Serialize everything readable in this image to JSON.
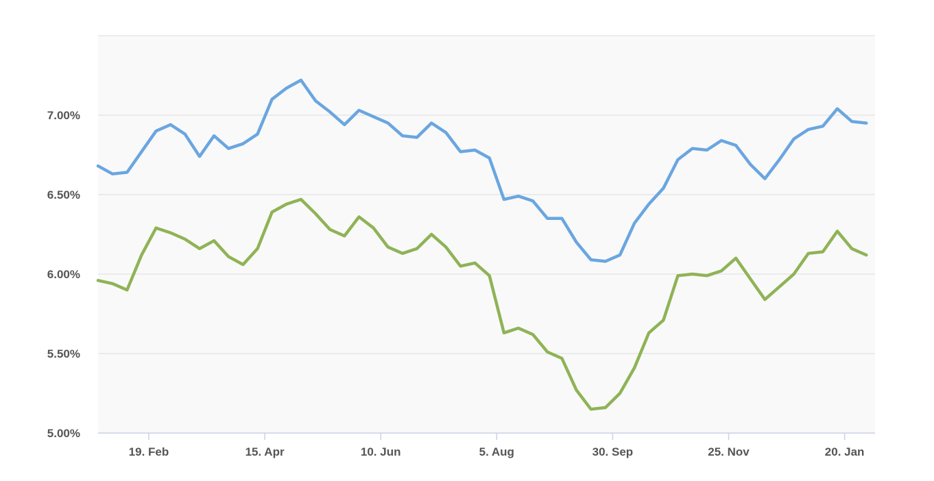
{
  "chart_data": {
    "type": "line",
    "title": "",
    "xlabel": "",
    "ylabel": "",
    "ylim": [
      5.0,
      7.5
    ],
    "y_ticks": [
      5.0,
      5.5,
      6.0,
      6.5,
      7.0,
      7.5
    ],
    "y_tick_labels": [
      "5.00%",
      "5.50%",
      "6.00%",
      "6.50%",
      "7.00%",
      ""
    ],
    "x_tick_labels": [
      "19. Feb",
      "15. Apr",
      "10. Jun",
      "5. Aug",
      "30. Sep",
      "25. Nov",
      "20. Jan"
    ],
    "x_tick_index": [
      3.5,
      11.5,
      19.5,
      27.5,
      35.5,
      43.5,
      51.5
    ],
    "x_range": [
      0,
      53.6
    ],
    "grid": true,
    "legend": "none",
    "colors": {
      "series1": "#6aa6e0",
      "series2": "#8fb356",
      "plot_background": "#f9f9f9",
      "grid": "#dddddd",
      "axis": "#c9d1e6",
      "tick_label": "#555555"
    },
    "series": [
      {
        "values": [
          6.68,
          6.63,
          6.64,
          6.77,
          6.9,
          6.94,
          6.88,
          6.74,
          6.87,
          6.79,
          6.82,
          6.88,
          7.1,
          7.17,
          7.22,
          7.09,
          7.02,
          6.94,
          7.03,
          6.99,
          6.95,
          6.87,
          6.86,
          6.95,
          6.89,
          6.77,
          6.78,
          6.73,
          6.47,
          6.49,
          6.46,
          6.35,
          6.35,
          6.2,
          6.09,
          6.08,
          6.12,
          6.32,
          6.44,
          6.54,
          6.72,
          6.79,
          6.78,
          6.84,
          6.81,
          6.69,
          6.6,
          6.72,
          6.85,
          6.91,
          6.93,
          7.04,
          6.96,
          6.95
        ]
      },
      {
        "values": [
          5.96,
          5.94,
          5.9,
          6.12,
          6.29,
          6.26,
          6.22,
          6.16,
          6.21,
          6.11,
          6.06,
          6.16,
          6.39,
          6.44,
          6.47,
          6.38,
          6.28,
          6.24,
          6.36,
          6.29,
          6.17,
          6.13,
          6.16,
          6.25,
          6.17,
          6.05,
          6.07,
          5.99,
          5.63,
          5.66,
          5.62,
          5.51,
          5.47,
          5.27,
          5.15,
          5.16,
          5.25,
          5.41,
          5.63,
          5.71,
          5.99,
          6.0,
          5.99,
          6.02,
          6.1,
          5.97,
          5.84,
          5.92,
          6.0,
          6.13,
          6.14,
          6.27,
          6.16,
          6.12
        ]
      }
    ]
  }
}
